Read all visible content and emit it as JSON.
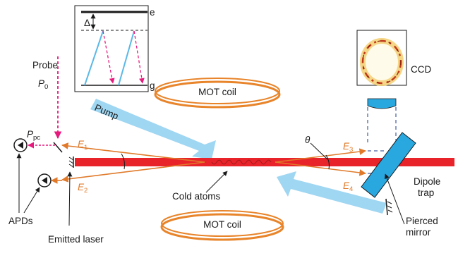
{
  "labels": {
    "e": "e",
    "g": "g",
    "delta": "Δ",
    "probe": "Probe",
    "p0_main": "P",
    "p0_sub": "0",
    "ppc_main": "P",
    "ppc_sub": "pc",
    "e1_main": "E",
    "e1_sub": "1",
    "e2_main": "E",
    "e2_sub": "2",
    "e3_main": "E",
    "e3_sub": "3",
    "e4_main": "E",
    "e4_sub": "4",
    "theta": "θ",
    "pump": "Pump",
    "mot_coil_top": "MOT coil",
    "mot_coil_bottom": "MOT coil",
    "ccd": "CCD",
    "dipole_trap_line1": "Dipole",
    "dipole_trap_line2": "trap",
    "cold_atoms": "Cold atoms",
    "apds": "APDs",
    "emitted_laser": "Emitted laser",
    "pierced_mirror_line1": "Pierced",
    "pierced_mirror_line2": "mirror"
  },
  "colors": {
    "dipole_beam": "#e8232a",
    "emitted_beams": "#e07a2a",
    "pump_beam": "#9fd6f2",
    "probe": "#e6197d",
    "mot_coil": "#e8842a",
    "ccd": "#29a8e0",
    "level_arrow": "#5bb8e6"
  }
}
